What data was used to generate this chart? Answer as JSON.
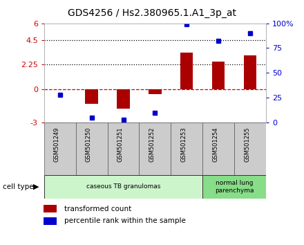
{
  "title": "GDS4256 / Hs2.380965.1.A1_3p_at",
  "samples": [
    "GSM501249",
    "GSM501250",
    "GSM501251",
    "GSM501252",
    "GSM501253",
    "GSM501254",
    "GSM501255"
  ],
  "transformed_count": [
    0.0,
    -1.3,
    -1.75,
    -0.45,
    3.35,
    2.5,
    3.1
  ],
  "percentile_rank": [
    28,
    5,
    3,
    10,
    99,
    82,
    90
  ],
  "ylim_left": [
    -3,
    6
  ],
  "ylim_right": [
    0,
    100
  ],
  "yticks_left": [
    -3,
    0,
    2.25,
    4.5,
    6
  ],
  "ytick_labels_left": [
    "-3",
    "0",
    "2.25",
    "4.5",
    "6"
  ],
  "yticks_right": [
    0,
    25,
    50,
    75,
    100
  ],
  "ytick_labels_right": [
    "0",
    "25",
    "50",
    "75",
    "100%"
  ],
  "hlines": [
    0.0,
    2.25,
    4.5
  ],
  "hline_styles": [
    "dashed",
    "dotted",
    "dotted"
  ],
  "hline_colors": [
    "#cc0000",
    "#000000",
    "#000000"
  ],
  "bar_color": "#aa0000",
  "dot_color": "#0000cc",
  "cell_type_groups": [
    {
      "label": "caseous TB granulomas",
      "start": 0,
      "end": 5,
      "color": "#ccf5cc"
    },
    {
      "label": "normal lung\nparenchyma",
      "start": 5,
      "end": 7,
      "color": "#88dd88"
    }
  ],
  "cell_type_label": "cell type",
  "legend_bar_label": "transformed count",
  "legend_dot_label": "percentile rank within the sample",
  "background_color": "#ffffff",
  "plot_bg_color": "#ffffff",
  "xtick_bg_color": "#cccccc",
  "title_fontsize": 10,
  "axis_label_color_left": "#cc0000",
  "axis_label_color_right": "#0000cc",
  "bar_width": 0.4
}
